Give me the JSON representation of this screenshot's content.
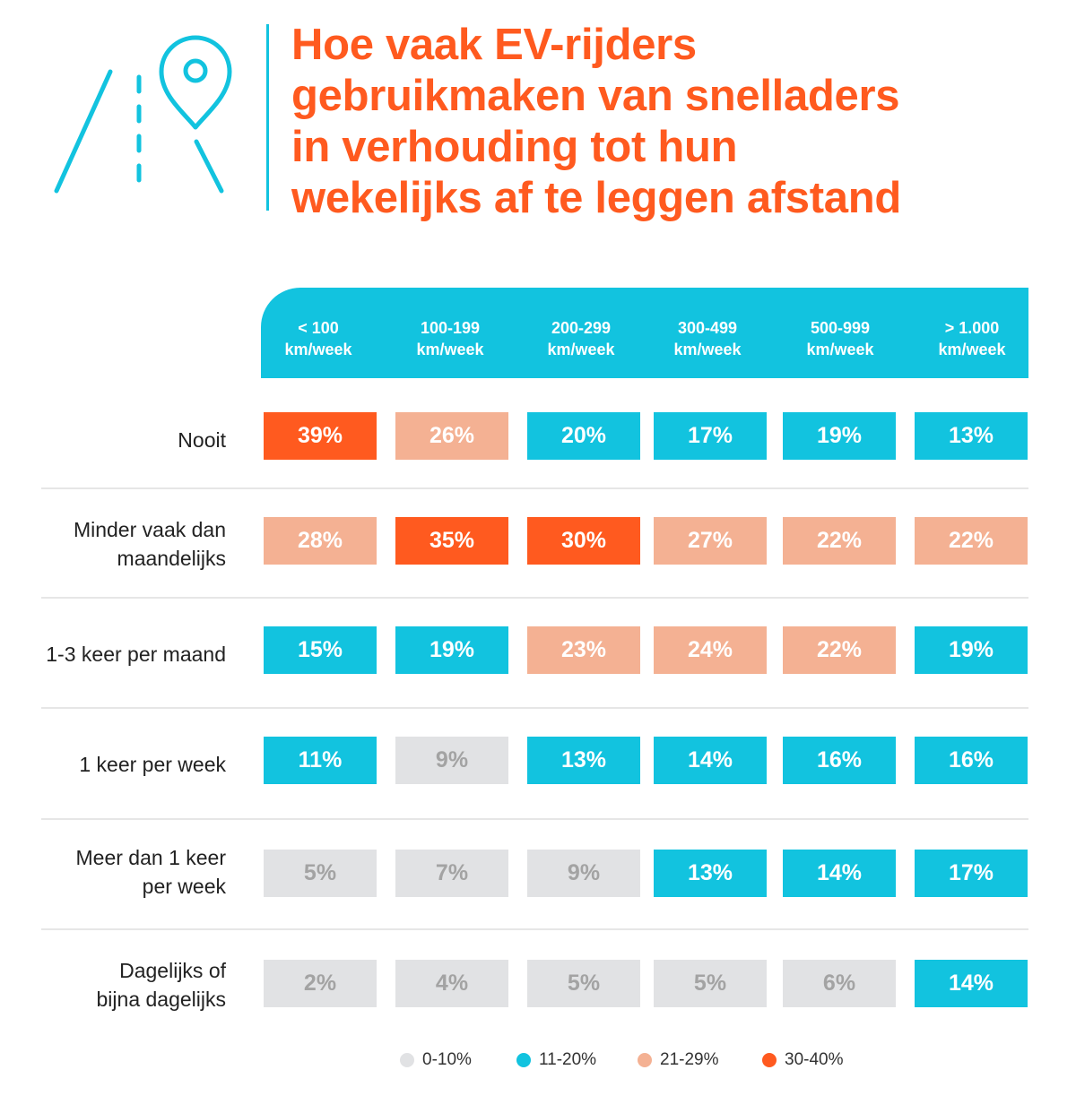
{
  "title": [
    "Hoe vaak EV-rijders",
    "gebruikmaken van snelladers",
    "in verhouding tot hun",
    "wekelijks af te leggen afstand"
  ],
  "icon": "road-with-location-pin-icon",
  "colors": {
    "band_0_10": "#e1e2e4",
    "band_11_20": "#12c3df",
    "band_21_29": "#f4b193",
    "band_30_40": "#ff5a1f",
    "title": "#ff5a1f"
  },
  "chart_data": {
    "type": "table",
    "title": "Hoe vaak EV-rijders gebruikmaken van snelladers in verhouding tot hun wekelijks af te leggen afstand",
    "columns": [
      {
        "line1": "< 100",
        "line2": "km/week"
      },
      {
        "line1": "100-199",
        "line2": "km/week"
      },
      {
        "line1": "200-299",
        "line2": "km/week"
      },
      {
        "line1": "300-499",
        "line2": "km/week"
      },
      {
        "line1": "500-999",
        "line2": "km/week"
      },
      {
        "line1": "> 1.000",
        "line2": "km/week"
      }
    ],
    "rows": [
      {
        "label": [
          "Nooit"
        ],
        "values": [
          39,
          26,
          20,
          17,
          19,
          13
        ]
      },
      {
        "label": [
          "Minder vaak dan",
          "maandelijks"
        ],
        "values": [
          28,
          35,
          30,
          27,
          22,
          22
        ]
      },
      {
        "label": [
          "1-3 keer per maand"
        ],
        "values": [
          15,
          19,
          23,
          24,
          22,
          19
        ]
      },
      {
        "label": [
          "1 keer per week"
        ],
        "values": [
          11,
          9,
          13,
          14,
          16,
          16
        ]
      },
      {
        "label": [
          "Meer dan 1 keer",
          "per week"
        ],
        "values": [
          5,
          7,
          9,
          13,
          14,
          17
        ]
      },
      {
        "label": [
          "Dagelijks of",
          "bijna dagelijks"
        ],
        "values": [
          2,
          4,
          5,
          5,
          6,
          14
        ]
      }
    ],
    "unit": "%",
    "legend": [
      {
        "label": "0-10%",
        "color": "#e1e2e4"
      },
      {
        "label": "11-20%",
        "color": "#12c3df"
      },
      {
        "label": "21-29%",
        "color": "#f4b193"
      },
      {
        "label": "30-40%",
        "color": "#ff5a1f"
      }
    ],
    "legend_position": "bottom"
  }
}
